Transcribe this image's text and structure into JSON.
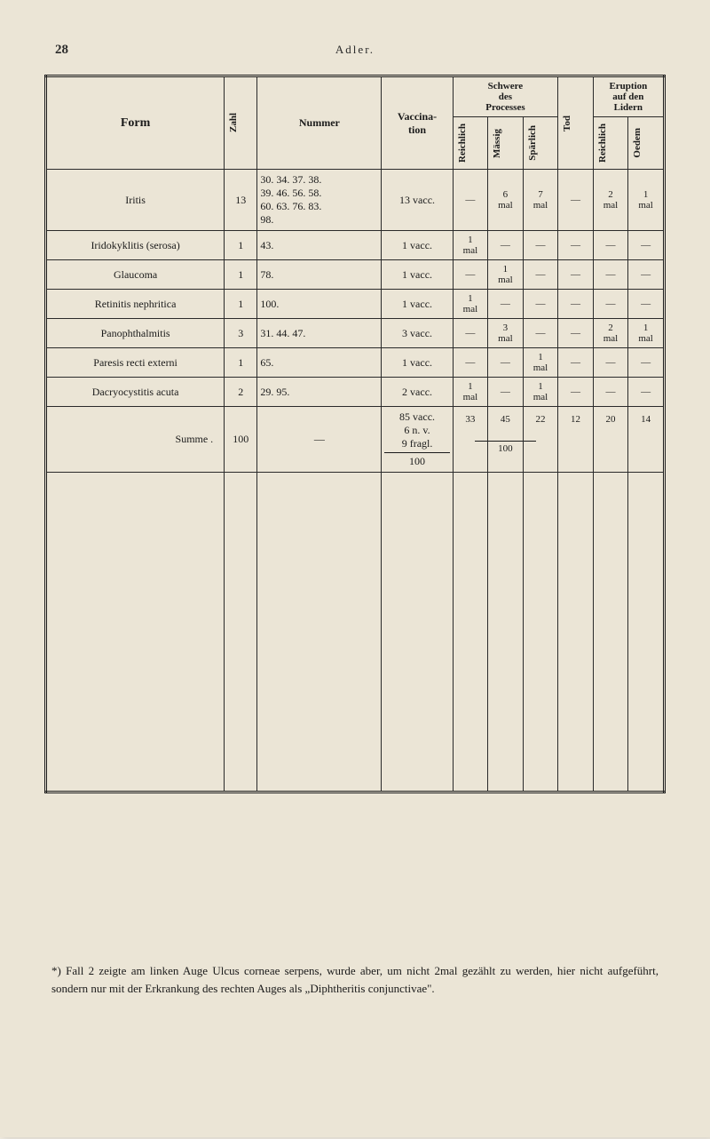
{
  "page_number": "28",
  "author_header": "Adler.",
  "table": {
    "headers": {
      "form": "Form",
      "zahl": "Zahl",
      "nummer": "Nummer",
      "vaccination": "Vaccina-\ntion",
      "schwere": "Schwere\ndes\nProcesses",
      "tod": "Tod",
      "eruption": "Eruption\nauf den\nLidern",
      "reichlich": "Reichlich",
      "massig": "Mässig",
      "sparlich": "Spärlich",
      "reichlich2": "Reichlich",
      "oedem": "Oedem"
    },
    "rows": [
      {
        "form": "Iritis",
        "zahl": "13",
        "nummer": "30. 34. 37. 38.\n39. 46. 56. 58.\n60. 63. 76. 83.\n98.",
        "vacc": "13 vacc.",
        "reichlich": "—",
        "massig": "6\nmal",
        "sparlich": "7\nmal",
        "tod": "—",
        "reichlich2": "2\nmal",
        "oedem": "1\nmal"
      },
      {
        "form": "Iridokyklitis (serosa)",
        "zahl": "1",
        "nummer": "43.",
        "vacc": "1 vacc.",
        "reichlich": "1\nmal",
        "massig": "—",
        "sparlich": "—",
        "tod": "—",
        "reichlich2": "—",
        "oedem": "—"
      },
      {
        "form": "Glaucoma",
        "zahl": "1",
        "nummer": "78.",
        "vacc": "1 vacc.",
        "reichlich": "—",
        "massig": "1\nmal",
        "sparlich": "—",
        "tod": "—",
        "reichlich2": "—",
        "oedem": "—"
      },
      {
        "form": "Retinitis nephritica",
        "zahl": "1",
        "nummer": "100.",
        "vacc": "1 vacc.",
        "reichlich": "1\nmal",
        "massig": "—",
        "sparlich": "—",
        "tod": "—",
        "reichlich2": "—",
        "oedem": "—"
      },
      {
        "form": "Panophthalmitis",
        "zahl": "3",
        "nummer": "31. 44. 47.",
        "vacc": "3 vacc.",
        "reichlich": "—",
        "massig": "3\nmal",
        "sparlich": "—",
        "tod": "—",
        "reichlich2": "2\nmal",
        "oedem": "1\nmal"
      },
      {
        "form": "Paresis recti externi",
        "zahl": "1",
        "nummer": "65.",
        "vacc": "1 vacc.",
        "reichlich": "—",
        "massig": "—",
        "sparlich": "1\nmal",
        "tod": "—",
        "reichlich2": "—",
        "oedem": "—"
      },
      {
        "form": "Dacryocystitis acuta",
        "zahl": "2",
        "nummer": "29. 95.",
        "vacc": "2 vacc.",
        "reichlich": "1\nmal",
        "massig": "—",
        "sparlich": "1\nmal",
        "tod": "—",
        "reichlich2": "—",
        "oedem": "—"
      }
    ],
    "summe": {
      "label": "Summe .",
      "zahl": "100",
      "nummer": "—",
      "vacc_top": "85 vacc.\n6 n. v.\n9 fragl.",
      "vacc_bottom": "100",
      "reichlich": "33",
      "massig": "45",
      "sparlich": "22",
      "under100": "100",
      "tod": "12",
      "reichlich2": "20",
      "oedem": "14"
    }
  },
  "footnote": "*) Fall 2 zeigte am linken Auge Ulcus corneae serpens, wurde aber, um nicht 2mal gezählt zu werden, hier nicht aufgeführt, sondern nur mit der Erkrankung des rechten Auges als „Diphtheritis conjunctivae\"."
}
